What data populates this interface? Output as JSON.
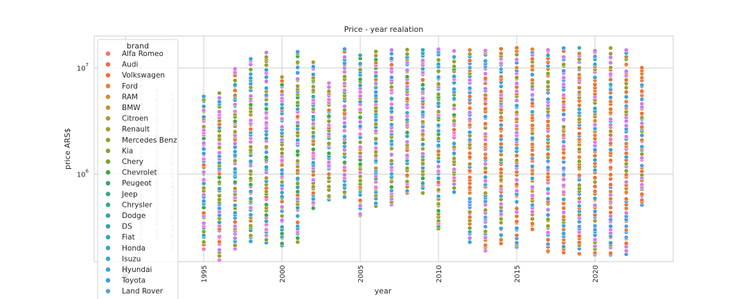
{
  "chart_data": {
    "type": "scatter",
    "title": "Price - year realation",
    "xlabel": "year",
    "ylabel": "price ARS$",
    "xlim": [
      1988,
      2025
    ],
    "ylim": [
      150000,
      20000000
    ],
    "yscale": "log",
    "grid": true,
    "legend_placement": "upper-left",
    "legend_title": "brand",
    "x_ticks": [
      "1990",
      "1995",
      "2000",
      "2005",
      "2010",
      "2015",
      "2020"
    ],
    "y_ticks": [
      {
        "value": 1000000,
        "base": "10",
        "exp": "6"
      },
      {
        "value": 10000000,
        "base": "10",
        "exp": "7"
      }
    ],
    "series": [
      {
        "name": "Alfa Romeo",
        "color": "#f2736f"
      },
      {
        "name": "Audi",
        "color": "#ef6a5a"
      },
      {
        "name": "Volkswagen",
        "color": "#ec7336"
      },
      {
        "name": "Ford",
        "color": "#e0823a"
      },
      {
        "name": "RAM",
        "color": "#d08d3a"
      },
      {
        "name": "BMW",
        "color": "#c19235"
      },
      {
        "name": "Citroen",
        "color": "#b39833"
      },
      {
        "name": "Renault",
        "color": "#a49c33"
      },
      {
        "name": "Mercedes Benz",
        "color": "#96a02f"
      },
      {
        "name": "Kia",
        "color": "#88a42f"
      },
      {
        "name": "Chery",
        "color": "#6fa831"
      },
      {
        "name": "Chevrolet",
        "color": "#3aaa43"
      },
      {
        "name": "Peugeot",
        "color": "#34a96a"
      },
      {
        "name": "Jeep",
        "color": "#35a883"
      },
      {
        "name": "Chrysler",
        "color": "#36a695"
      },
      {
        "name": "Dodge",
        "color": "#37a5a3"
      },
      {
        "name": "DS",
        "color": "#37a4ae"
      },
      {
        "name": "Fiat",
        "color": "#38a4b9"
      },
      {
        "name": "Honda",
        "color": "#3aa5c4"
      },
      {
        "name": "Isuzu",
        "color": "#3ca6cf"
      },
      {
        "name": "Hyundai",
        "color": "#40a0d6"
      },
      {
        "name": "Toyota",
        "color": "#3d9ee0"
      },
      {
        "name": "Land Rover",
        "color": "#5b9be8"
      }
    ],
    "extra_colors": [
      "#c77df0",
      "#d97be6",
      "#ee7cd6"
    ],
    "columns": [
      {
        "x": 1991,
        "low": 200000,
        "high": 10000000,
        "hidden": true
      },
      {
        "x": 1992,
        "low": 250000,
        "high": 6000000,
        "hidden": true
      },
      {
        "x": 1993,
        "low": 200000,
        "high": 5500000,
        "hidden": true
      },
      {
        "x": 1995,
        "low": 200000,
        "high": 5500000
      },
      {
        "x": 1996,
        "low": 160000,
        "high": 6000000
      },
      {
        "x": 1997,
        "low": 200000,
        "high": 9500000
      },
      {
        "x": 1998,
        "low": 230000,
        "high": 12500000
      },
      {
        "x": 1999,
        "low": 230000,
        "high": 14000000
      },
      {
        "x": 2000,
        "low": 210000,
        "high": 8000000
      },
      {
        "x": 2001,
        "low": 230000,
        "high": 14500000
      },
      {
        "x": 2002,
        "low": 480000,
        "high": 11000000
      },
      {
        "x": 2003,
        "low": 560000,
        "high": 7000000
      },
      {
        "x": 2004,
        "low": 600000,
        "high": 15000000
      },
      {
        "x": 2005,
        "low": 400000,
        "high": 13000000
      },
      {
        "x": 2006,
        "low": 500000,
        "high": 14000000
      },
      {
        "x": 2007,
        "low": 500000,
        "high": 14500000
      },
      {
        "x": 2008,
        "low": 650000,
        "high": 15000000
      },
      {
        "x": 2009,
        "low": 680000,
        "high": 15000000
      },
      {
        "x": 2010,
        "low": 300000,
        "high": 15000000
      },
      {
        "x": 2011,
        "low": 700000,
        "high": 15000000
      },
      {
        "x": 2012,
        "low": 230000,
        "high": 15000000
      },
      {
        "x": 2013,
        "low": 190000,
        "high": 15000000
      },
      {
        "x": 2014,
        "low": 220000,
        "high": 15000000
      },
      {
        "x": 2015,
        "low": 200000,
        "high": 15000000
      },
      {
        "x": 2016,
        "low": 300000,
        "high": 15000000
      },
      {
        "x": 2017,
        "low": 180000,
        "high": 15000000
      },
      {
        "x": 2018,
        "low": 180000,
        "high": 15000000
      },
      {
        "x": 2019,
        "low": 180000,
        "high": 15000000
      },
      {
        "x": 2020,
        "low": 170000,
        "high": 15000000
      },
      {
        "x": 2021,
        "low": 170000,
        "high": 15000000
      },
      {
        "x": 2022,
        "low": 180000,
        "high": 15000000
      },
      {
        "x": 2023,
        "low": 500000,
        "high": 10000000
      }
    ]
  }
}
